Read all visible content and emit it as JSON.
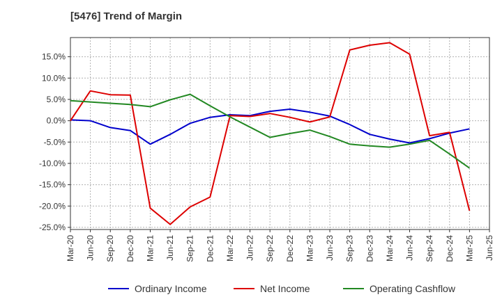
{
  "title": "[5476]  Trend of Margin",
  "chart_data": {
    "type": "line",
    "title": "[5476]  Trend of Margin",
    "xlabel": "",
    "ylabel": "",
    "grid": true,
    "legend_position": "bottom",
    "ylim": [
      -25.5,
      19.5
    ],
    "yticks": [
      15,
      10,
      5,
      0,
      -5,
      -10,
      -15,
      -20,
      -25
    ],
    "ytick_labels": [
      "15.0%",
      "10.0%",
      "5.0%",
      "0.0%",
      "-5.0%",
      "-10.0%",
      "-15.0%",
      "-20.0%",
      "-25.0%"
    ],
    "x": [
      "Mar-20",
      "Jun-20",
      "Sep-20",
      "Dec-20",
      "Mar-21",
      "Jun-21",
      "Sep-21",
      "Dec-21",
      "Mar-22",
      "Jun-22",
      "Sep-22",
      "Dec-22",
      "Mar-23",
      "Jun-23",
      "Sep-23",
      "Dec-23",
      "Mar-24",
      "Jun-24",
      "Sep-24",
      "Dec-24",
      "Mar-25",
      "Jun-25"
    ],
    "series": [
      {
        "name": "Ordinary Income",
        "color": "#0000cc",
        "values": [
          0.2,
          0.0,
          -1.6,
          -2.3,
          -5.5,
          -3.2,
          -0.6,
          0.8,
          1.4,
          1.2,
          2.2,
          2.7,
          2.0,
          1.1,
          -0.9,
          -3.2,
          -4.3,
          -5.2,
          -4.2,
          -2.9,
          -1.9,
          null
        ]
      },
      {
        "name": "Net Income",
        "color": "#dd0000",
        "values": [
          0.0,
          7.0,
          6.1,
          6.0,
          -20.5,
          -24.3,
          -20.2,
          -17.9,
          1.2,
          1.0,
          1.7,
          0.8,
          -0.3,
          0.9,
          16.6,
          17.7,
          18.3,
          15.6,
          -3.5,
          -2.7,
          -21.1,
          null
        ]
      },
      {
        "name": "Operating Cashflow",
        "color": "#228822",
        "values": [
          4.7,
          4.4,
          4.1,
          3.8,
          3.3,
          4.9,
          6.2,
          3.5,
          0.9,
          -1.5,
          -3.9,
          -3.0,
          -2.2,
          -3.7,
          -5.5,
          -5.9,
          -6.2,
          -5.5,
          -4.6,
          -7.8,
          -11.1,
          null
        ]
      }
    ]
  }
}
